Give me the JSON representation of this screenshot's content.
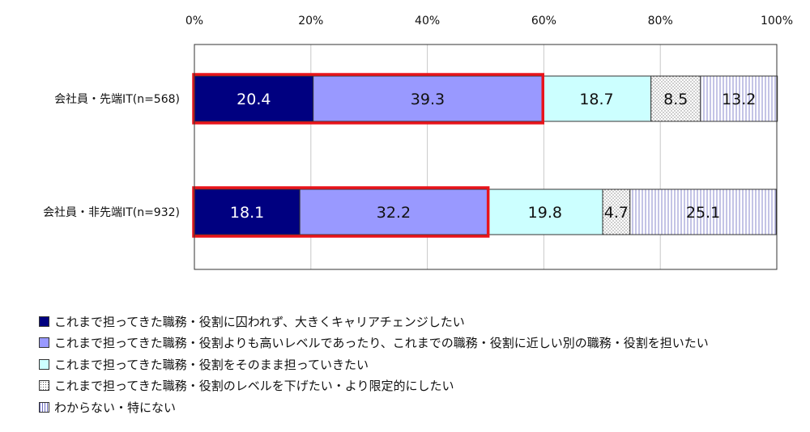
{
  "chart_data": {
    "type": "bar",
    "orientation": "horizontal",
    "stacked": true,
    "normalized": true,
    "xlim": [
      0,
      100
    ],
    "x_ticks": [
      "0%",
      "20%",
      "40%",
      "60%",
      "80%",
      "100%"
    ],
    "categories": [
      "会社員・先端IT(n=568)",
      "会社員・非先端IT(n=932)"
    ],
    "series": [
      {
        "name": "これまで担ってきた職務・役割に囚われず、大きくキャリアチェンジしたい",
        "values": [
          20.4,
          18.1
        ],
        "color": "#000080",
        "pattern": "solid"
      },
      {
        "name": "これまで担ってきた職務・役割よりも高いレベルであったり、これまでの職務・役割に近しい別の職務・役割を担いたい",
        "values": [
          39.3,
          32.2
        ],
        "color": "#9999ff",
        "pattern": "solid"
      },
      {
        "name": "これまで担ってきた職務・役割をそのまま担っていきたい",
        "values": [
          18.7,
          19.8
        ],
        "color": "#ccffff",
        "pattern": "solid"
      },
      {
        "name": "これまで担ってきた職務・役割のレベルを下げたい・より限定的にしたい",
        "values": [
          8.5,
          4.7
        ],
        "color": "#ffffff",
        "pattern": "dots"
      },
      {
        "name": "わからない・特にない",
        "values": [
          13.2,
          25.1
        ],
        "color": "#ffffff",
        "pattern": "vertical-lines"
      }
    ],
    "highlight": {
      "color": "#e8141b",
      "series_indices": [
        0,
        1
      ]
    },
    "grid": true,
    "legend_position": "bottom-left"
  }
}
